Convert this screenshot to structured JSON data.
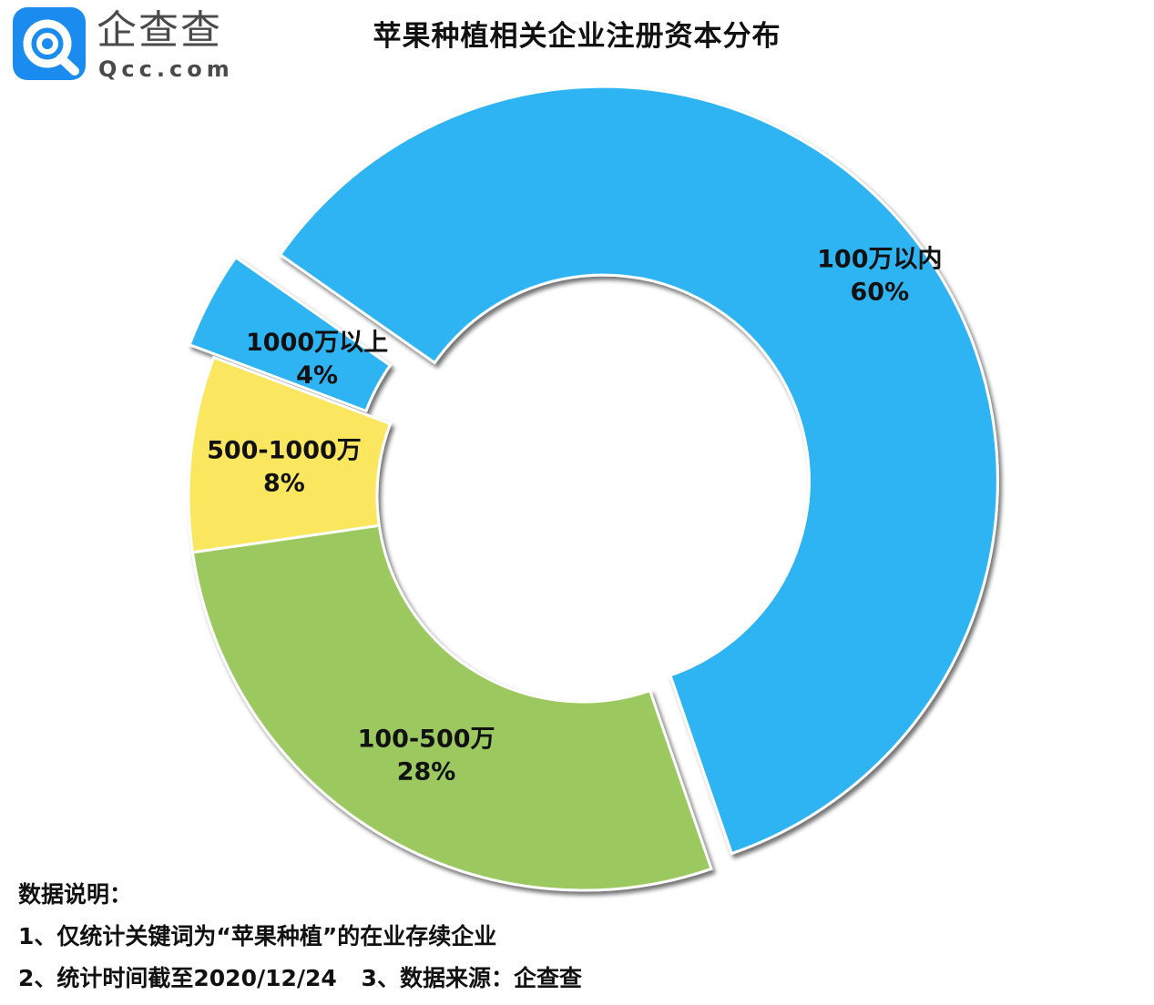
{
  "logo": {
    "name": "企查查",
    "domain": "Qcc.com",
    "icon": "magnifier-q-icon"
  },
  "chart_data": {
    "type": "pie",
    "subtype": "donut",
    "title": "苹果种植相关企业注册资本分布",
    "categories": [
      "100万以内",
      "100-500万",
      "500-1000万",
      "1000万以上"
    ],
    "values": [
      60,
      28,
      8,
      4
    ],
    "value_labels": [
      "60%",
      "28%",
      "8%",
      "4%"
    ],
    "colors": [
      "#2db4f3",
      "#9bc95e",
      "#fbe65f",
      "#2db4f3"
    ],
    "legend": "none"
  },
  "notes": {
    "heading": "数据说明：",
    "line1": "1、仅统计关键词为“苹果种植”的在业存续企业",
    "line2": "2、统计时间截至2020/12/24",
    "line3": "3、数据来源：企查查"
  }
}
